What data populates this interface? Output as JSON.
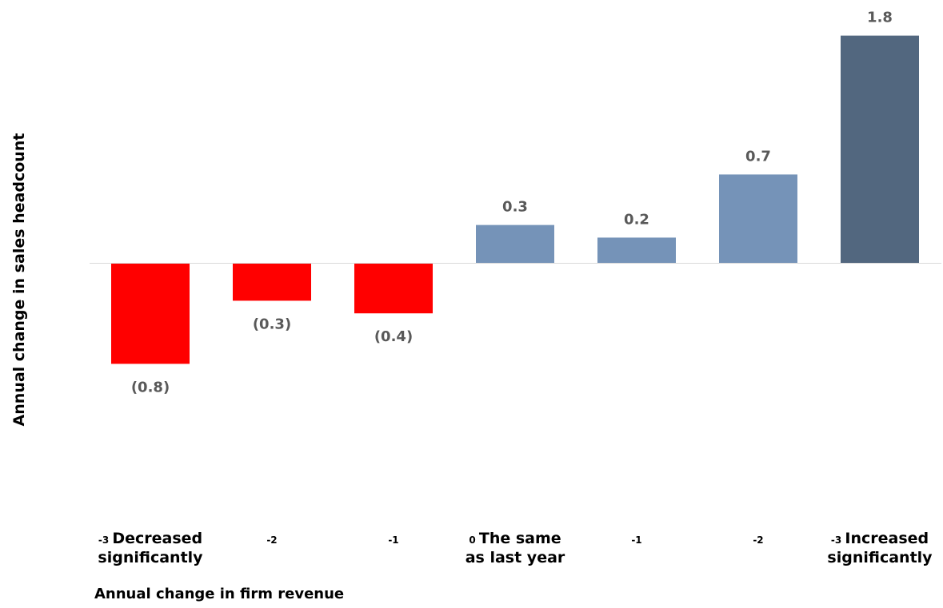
{
  "title": "",
  "chart_data": {
    "type": "bar",
    "categories": [
      "-3 Decreased significantly",
      "-2",
      "-1",
      "0 The same as last year",
      "-1",
      "-2",
      "-3 Increased significantly"
    ],
    "category_labels": [
      {
        "num": "-3",
        "text": [
          "Decreased",
          "significantly"
        ]
      },
      {
        "num": "-2",
        "text": []
      },
      {
        "num": "-1",
        "text": []
      },
      {
        "num": "0",
        "text": [
          "The same",
          "as last year"
        ]
      },
      {
        "num": "-1",
        "text": []
      },
      {
        "num": "-2",
        "text": []
      },
      {
        "num": "-3",
        "text": [
          "Increased",
          "significantly"
        ]
      }
    ],
    "values": [
      -0.8,
      -0.3,
      -0.4,
      0.3,
      0.2,
      0.7,
      1.8
    ],
    "data_labels": [
      "(0.8)",
      "(0.3)",
      "(0.4)",
      "0.3",
      "0.2",
      "0.7",
      "1.8"
    ],
    "bar_colors": [
      "#ff0000",
      "#ff0000",
      "#ff0000",
      "#7593b8",
      "#7593b8",
      "#7593b8",
      "#52677f"
    ],
    "xlabel": "Annual change in firm revenue",
    "ylabel": "Annual change in sales headcount",
    "ylim": [
      -2.4,
      1.8
    ],
    "grid": false,
    "legend": "none"
  }
}
